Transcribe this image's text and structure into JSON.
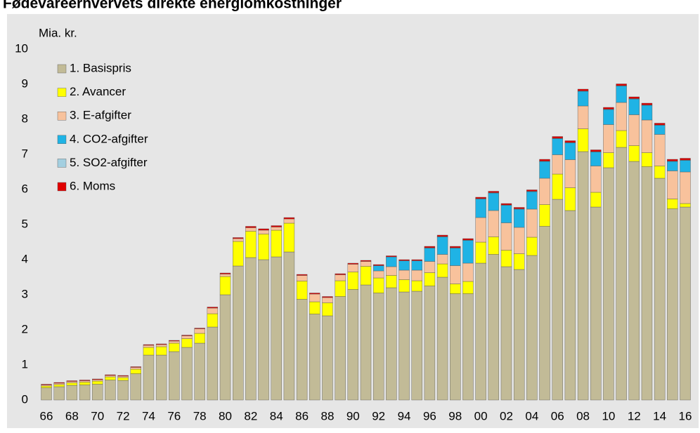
{
  "chart_data": {
    "type": "stacked_bar",
    "title": "Fødevareerhvervets direkte energiomkostninger",
    "y_axis_label": "Mia. kr.",
    "categories": [
      "66",
      null,
      "68",
      null,
      "70",
      null,
      "72",
      null,
      "74",
      null,
      "76",
      null,
      "78",
      null,
      "80",
      null,
      "82",
      null,
      "84",
      null,
      "86",
      null,
      "88",
      null,
      "90",
      null,
      "92",
      null,
      "94",
      null,
      "96",
      null,
      "98",
      null,
      "00",
      null,
      "02",
      null,
      "04",
      null,
      "06",
      null,
      "08",
      null,
      "10",
      null,
      "12",
      null,
      "14",
      null,
      "16"
    ],
    "series": [
      {
        "name": "1. Basispris",
        "color": "#c2bb97",
        "values": [
          0.35,
          0.38,
          0.42,
          0.43,
          0.45,
          0.57,
          0.56,
          0.75,
          1.28,
          1.28,
          1.38,
          1.5,
          1.62,
          2.08,
          3.0,
          3.82,
          4.06,
          4.0,
          4.08,
          4.22,
          2.87,
          2.45,
          2.4,
          2.95,
          3.15,
          3.28,
          3.05,
          3.2,
          3.08,
          3.1,
          3.25,
          3.5,
          3.03,
          3.03,
          3.9,
          4.15,
          3.8,
          3.72,
          4.12,
          4.95,
          5.72,
          5.4,
          7.08,
          5.5,
          6.62,
          7.2,
          6.8,
          6.65,
          6.32,
          5.45,
          5.5
        ]
      },
      {
        "name": "2. Avancer",
        "color": "#ffff00",
        "values": [
          0.05,
          0.06,
          0.07,
          0.08,
          0.09,
          0.09,
          0.08,
          0.13,
          0.22,
          0.24,
          0.24,
          0.25,
          0.28,
          0.38,
          0.52,
          0.7,
          0.75,
          0.73,
          0.76,
          0.82,
          0.52,
          0.35,
          0.37,
          0.45,
          0.5,
          0.53,
          0.43,
          0.35,
          0.35,
          0.3,
          0.38,
          0.38,
          0.28,
          0.35,
          0.6,
          0.5,
          0.47,
          0.45,
          0.52,
          0.62,
          0.72,
          0.65,
          0.65,
          0.42,
          0.43,
          0.48,
          0.45,
          0.4,
          0.35,
          0.28,
          0.1
        ]
      },
      {
        "name": "3. E-afgifter",
        "color": "#f8c29c",
        "values": [
          0.03,
          0.04,
          0.04,
          0.04,
          0.04,
          0.04,
          0.04,
          0.05,
          0.06,
          0.06,
          0.06,
          0.08,
          0.13,
          0.16,
          0.07,
          0.08,
          0.1,
          0.11,
          0.09,
          0.12,
          0.16,
          0.22,
          0.15,
          0.17,
          0.22,
          0.14,
          0.2,
          0.25,
          0.27,
          0.3,
          0.32,
          0.27,
          0.52,
          0.52,
          0.7,
          0.75,
          0.78,
          0.75,
          0.8,
          0.75,
          0.55,
          0.8,
          0.65,
          0.75,
          0.8,
          0.8,
          0.88,
          0.93,
          0.9,
          0.8,
          0.9
        ]
      },
      {
        "name": "4. CO2-afgifter",
        "color": "#1fb3e5",
        "values": [
          0,
          0,
          0,
          0,
          0,
          0,
          0,
          0,
          0,
          0,
          0,
          0,
          0,
          0,
          0,
          0,
          0,
          0,
          0,
          0,
          0,
          0,
          0,
          0,
          0,
          0,
          0.15,
          0.28,
          0.27,
          0.27,
          0.38,
          0.5,
          0.5,
          0.65,
          0.53,
          0.5,
          0.5,
          0.52,
          0.5,
          0.48,
          0.46,
          0.48,
          0.42,
          0.4,
          0.43,
          0.47,
          0.45,
          0.42,
          0.26,
          0.27,
          0.33
        ]
      },
      {
        "name": "5. SO2-afgifter",
        "color": "#a3cfe0",
        "values": [
          0,
          0,
          0,
          0,
          0,
          0,
          0,
          0,
          0,
          0,
          0,
          0,
          0,
          0,
          0,
          0,
          0,
          0,
          0,
          0,
          0,
          0,
          0,
          0,
          0,
          0,
          0,
          0,
          0,
          0,
          0.01,
          0.01,
          0.01,
          0.01,
          0.01,
          0.01,
          0.01,
          0.01,
          0.01,
          0.01,
          0.01,
          0.01,
          0.01,
          0.01,
          0.01,
          0.01,
          0.01,
          0.01,
          0.01,
          0.01,
          0.01
        ]
      },
      {
        "name": "6. Moms",
        "color": "#e00000",
        "values": [
          0.02,
          0.02,
          0.02,
          0.02,
          0.02,
          0.02,
          0.02,
          0.02,
          0.02,
          0.02,
          0.02,
          0.02,
          0.02,
          0.03,
          0.03,
          0.03,
          0.04,
          0.04,
          0.04,
          0.04,
          0.03,
          0.03,
          0.03,
          0.03,
          0.03,
          0.03,
          0.03,
          0.03,
          0.03,
          0.03,
          0.04,
          0.04,
          0.04,
          0.04,
          0.04,
          0.04,
          0.04,
          0.04,
          0.04,
          0.05,
          0.05,
          0.05,
          0.05,
          0.05,
          0.05,
          0.05,
          0.05,
          0.05,
          0.05,
          0.05,
          0.05
        ]
      }
    ],
    "ylim": [
      0,
      10
    ],
    "yticks": [
      0,
      1,
      2,
      3,
      4,
      5,
      6,
      7,
      8,
      9,
      10
    ],
    "legend": "upper left"
  }
}
